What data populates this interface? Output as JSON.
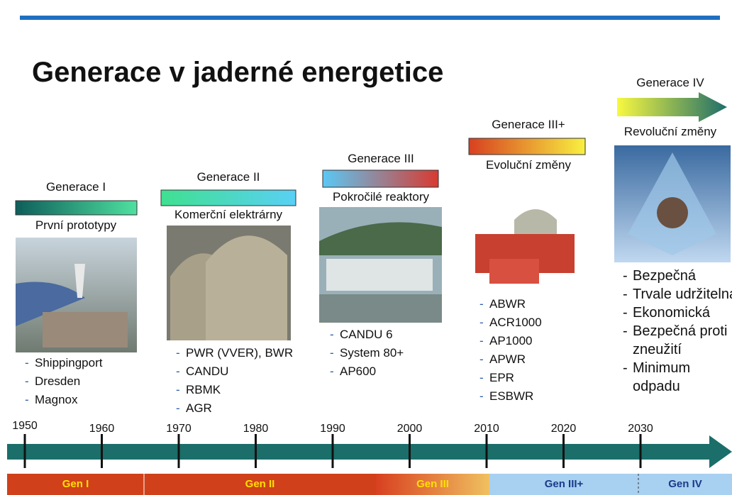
{
  "title": "Generace v jaderné energetice",
  "generations": [
    {
      "label": "Generace I",
      "subtitle": "První prototypy",
      "items": [
        "Shippingport",
        "Dresden",
        "Magnox"
      ]
    },
    {
      "label": "Generace II",
      "subtitle": "Komerční elektrárny",
      "items": [
        "PWR (VVER), BWR",
        "CANDU",
        "RBMK",
        "AGR"
      ]
    },
    {
      "label": "Generace III",
      "subtitle": "Pokročilé reaktory",
      "items": [
        "CANDU 6",
        "System 80+",
        "AP600"
      ]
    },
    {
      "label": "Generace III+",
      "subtitle": "Evoluční změny",
      "items": [
        "ABWR",
        "ACR1000",
        "AP1000",
        "APWR",
        "EPR",
        "ESBWR"
      ]
    },
    {
      "label": "Generace IV",
      "subtitle": "Revoluční změny",
      "items": [
        "Bezpečná",
        "Trvale udržitelná",
        "Ekonomická",
        "Bezpečná proti zneužití",
        "Minimum odpadu"
      ]
    }
  ],
  "timeline": {
    "years": [
      1950,
      1960,
      1970,
      1980,
      1990,
      2000,
      2010,
      2020,
      2030
    ]
  },
  "bottom_bar": [
    "Gen I",
    "Gen II",
    "Gen III",
    "Gen III+",
    "Gen IV"
  ]
}
